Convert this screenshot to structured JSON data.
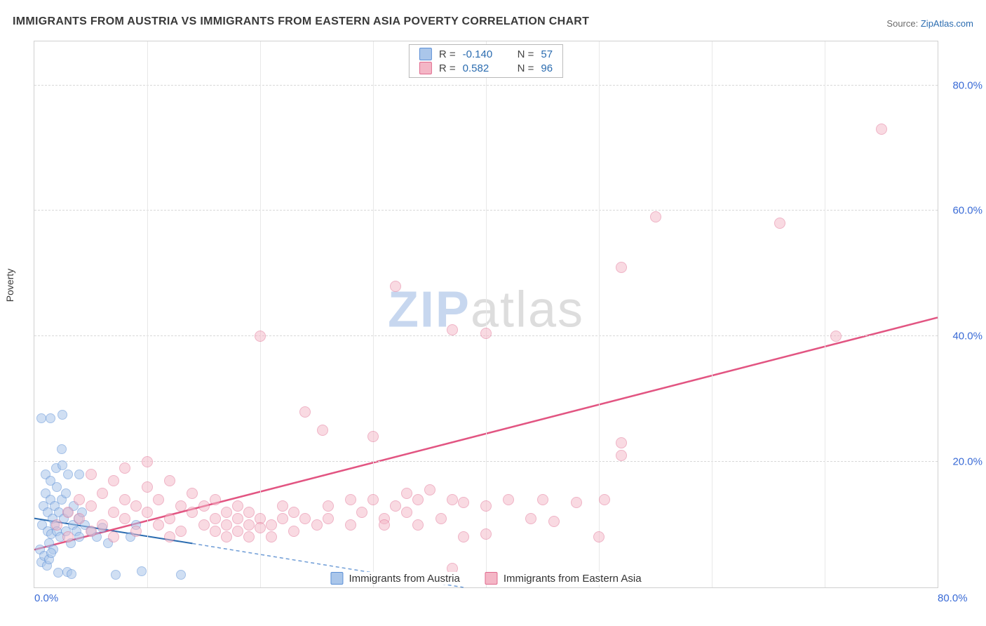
{
  "title": "IMMIGRANTS FROM AUSTRIA VS IMMIGRANTS FROM EASTERN ASIA POVERTY CORRELATION CHART",
  "source_label": "Source:",
  "source_name": "ZipAtlas.com",
  "y_axis_label": "Poverty",
  "watermark_a": "ZIP",
  "watermark_b": "atlas",
  "chart": {
    "type": "scatter",
    "background_color": "#ffffff",
    "plot_border_color": "#d0d0d0",
    "grid_color_h": "#d8d8d8",
    "grid_color_v": "#e8e8e8",
    "tick_label_color": "#3a6bd6",
    "xlim": [
      0,
      80
    ],
    "ylim": [
      0,
      87
    ],
    "x_ticks": [
      0,
      10,
      20,
      30,
      40,
      50,
      60,
      70,
      80
    ],
    "x_tick_labels": {
      "0": "0.0%",
      "80": "80.0%"
    },
    "y_ticks": [
      20,
      40,
      60,
      80
    ],
    "y_tick_labels": {
      "20": "20.0%",
      "40": "40.0%",
      "60": "60.0%",
      "80": "80.0%"
    },
    "series": [
      {
        "name": "Immigrants from Austria",
        "fill_color": "#aac6ea",
        "fill_opacity": 0.55,
        "stroke_color": "#5b8fd6",
        "marker_radius": 7,
        "R": "-0.140",
        "N": "57",
        "regression": {
          "x1": 0,
          "y1": 11.0,
          "x2": 14,
          "y2": 7.0,
          "color": "#2b6cb0",
          "width": 2,
          "dash": ""
        },
        "regression_ext": {
          "x1": 14,
          "y1": 7.0,
          "x2": 38,
          "y2": 0.0,
          "color": "#6e9cd6",
          "width": 1.5,
          "dash": "5,4"
        },
        "points": [
          [
            0.7,
            10
          ],
          [
            0.8,
            13
          ],
          [
            1.0,
            15
          ],
          [
            1.0,
            18
          ],
          [
            1.2,
            9
          ],
          [
            1.2,
            12
          ],
          [
            1.3,
            7
          ],
          [
            1.4,
            14
          ],
          [
            1.4,
            17
          ],
          [
            1.6,
            11
          ],
          [
            1.5,
            8.5
          ],
          [
            1.7,
            6
          ],
          [
            1.8,
            10
          ],
          [
            1.8,
            13
          ],
          [
            2.0,
            16
          ],
          [
            2.0,
            9
          ],
          [
            2.2,
            12
          ],
          [
            2.3,
            8
          ],
          [
            2.4,
            14
          ],
          [
            2.4,
            22
          ],
          [
            0.5,
            6
          ],
          [
            0.6,
            4
          ],
          [
            0.9,
            5
          ],
          [
            1.1,
            3.5
          ],
          [
            1.3,
            4.5
          ],
          [
            1.5,
            5.5
          ],
          [
            2.6,
            11
          ],
          [
            2.8,
            9
          ],
          [
            2.8,
            15
          ],
          [
            3.0,
            12
          ],
          [
            3.0,
            18
          ],
          [
            3.2,
            7
          ],
          [
            3.4,
            10
          ],
          [
            3.5,
            13
          ],
          [
            3.7,
            9
          ],
          [
            3.9,
            11
          ],
          [
            4.0,
            8
          ],
          [
            4.2,
            12
          ],
          [
            0.6,
            27
          ],
          [
            1.4,
            27
          ],
          [
            2.5,
            27.5
          ],
          [
            4.5,
            10
          ],
          [
            5.0,
            9
          ],
          [
            5.5,
            8
          ],
          [
            6.0,
            9.5
          ],
          [
            6.5,
            7
          ],
          [
            7.2,
            2.0
          ],
          [
            8.5,
            8
          ],
          [
            9.0,
            10
          ],
          [
            9.5,
            2.6
          ],
          [
            2.1,
            2.3
          ],
          [
            2.9,
            2.5
          ],
          [
            3.3,
            2.1
          ],
          [
            13,
            2.0
          ],
          [
            4.0,
            18
          ],
          [
            1.9,
            19
          ],
          [
            2.5,
            19.5
          ]
        ]
      },
      {
        "name": "Immigrants from Eastern Asia",
        "fill_color": "#f4b6c6",
        "fill_opacity": 0.5,
        "stroke_color": "#e06a8e",
        "marker_radius": 8,
        "R": "0.582",
        "N": "96",
        "regression": {
          "x1": 0,
          "y1": 6.0,
          "x2": 80,
          "y2": 43.0,
          "color": "#e25582",
          "width": 2.5,
          "dash": ""
        },
        "points": [
          [
            2,
            10
          ],
          [
            3,
            12
          ],
          [
            3,
            8
          ],
          [
            4,
            11
          ],
          [
            4,
            14
          ],
          [
            5,
            9
          ],
          [
            5,
            13
          ],
          [
            5,
            18
          ],
          [
            6,
            10
          ],
          [
            6,
            15
          ],
          [
            7,
            8
          ],
          [
            7,
            12
          ],
          [
            7,
            17
          ],
          [
            8,
            11
          ],
          [
            8,
            14
          ],
          [
            8,
            19
          ],
          [
            9,
            9
          ],
          [
            9,
            13
          ],
          [
            10,
            12
          ],
          [
            10,
            16
          ],
          [
            10,
            20
          ],
          [
            11,
            10
          ],
          [
            11,
            14
          ],
          [
            12,
            11
          ],
          [
            12,
            17
          ],
          [
            12,
            8
          ],
          [
            13,
            13
          ],
          [
            13,
            9
          ],
          [
            14,
            12
          ],
          [
            14,
            15
          ],
          [
            15,
            10
          ],
          [
            15,
            13
          ],
          [
            16,
            9
          ],
          [
            16,
            14
          ],
          [
            16,
            11
          ],
          [
            17,
            12
          ],
          [
            17,
            10
          ],
          [
            17,
            8
          ],
          [
            18,
            11
          ],
          [
            18,
            13
          ],
          [
            18,
            9
          ],
          [
            19,
            12
          ],
          [
            19,
            10
          ],
          [
            19,
            8
          ],
          [
            20,
            11
          ],
          [
            20,
            9.5
          ],
          [
            21,
            10
          ],
          [
            21,
            8
          ],
          [
            22,
            11
          ],
          [
            22,
            13
          ],
          [
            23,
            9
          ],
          [
            23,
            12
          ],
          [
            24,
            11
          ],
          [
            24,
            28
          ],
          [
            25,
            10
          ],
          [
            25.5,
            25
          ],
          [
            26,
            13
          ],
          [
            26,
            11
          ],
          [
            28,
            14
          ],
          [
            28,
            10
          ],
          [
            29,
            12
          ],
          [
            30,
            24
          ],
          [
            30,
            14
          ],
          [
            31,
            11
          ],
          [
            31,
            10
          ],
          [
            32,
            13
          ],
          [
            33,
            15
          ],
          [
            33,
            12
          ],
          [
            34,
            14
          ],
          [
            34,
            10
          ],
          [
            35,
            15.5
          ],
          [
            36,
            11
          ],
          [
            37,
            14
          ],
          [
            38,
            8
          ],
          [
            38,
            13.5
          ],
          [
            40,
            13
          ],
          [
            40,
            8.5
          ],
          [
            42,
            14
          ],
          [
            44,
            11
          ],
          [
            45,
            14
          ],
          [
            46,
            10.5
          ],
          [
            48,
            13.5
          ],
          [
            50,
            8
          ],
          [
            50.5,
            14
          ],
          [
            52,
            21
          ],
          [
            52,
            23
          ],
          [
            20,
            40
          ],
          [
            37,
            41
          ],
          [
            40,
            40.5
          ],
          [
            32,
            48
          ],
          [
            52,
            51
          ],
          [
            55,
            59
          ],
          [
            71,
            40
          ],
          [
            66,
            58
          ],
          [
            75,
            73
          ],
          [
            37,
            3
          ]
        ]
      }
    ]
  },
  "legend_bottom": [
    {
      "label": "Immigrants from Austria",
      "fill": "#aac6ea",
      "stroke": "#5b8fd6"
    },
    {
      "label": "Immigrants from Eastern Asia",
      "fill": "#f4b6c6",
      "stroke": "#e06a8e"
    }
  ]
}
